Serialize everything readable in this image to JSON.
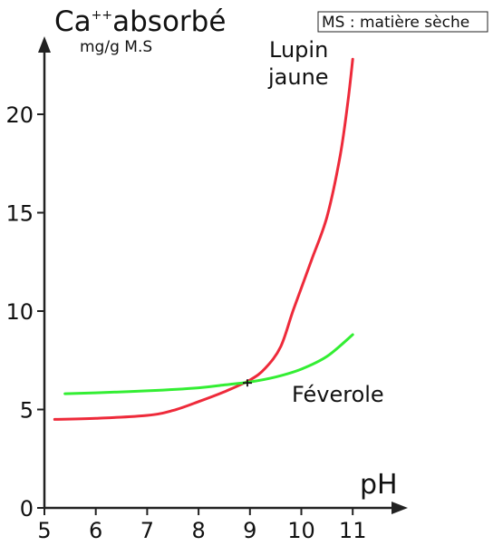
{
  "chart_data": {
    "type": "line",
    "ylabel": {
      "main": "Ca",
      "superscript": "++",
      "suffix": "absorbé",
      "unit": "mg/g M.S"
    },
    "xlabel": "pH",
    "note": "MS : matière sèche",
    "xlim": [
      5,
      11
    ],
    "ylim": [
      0,
      22
    ],
    "x_ticks": [
      5,
      6,
      7,
      8,
      9,
      10,
      11
    ],
    "y_ticks": [
      0,
      5,
      10,
      15,
      20
    ],
    "series": [
      {
        "name": "Lupin jaune",
        "label_lines": [
          "Lupin",
          "jaune"
        ],
        "color": "#ee2a3a",
        "points": [
          [
            5.2,
            4.5
          ],
          [
            6.0,
            4.55
          ],
          [
            7.0,
            4.7
          ],
          [
            7.5,
            4.95
          ],
          [
            8.0,
            5.4
          ],
          [
            8.5,
            5.9
          ],
          [
            9.0,
            6.5
          ],
          [
            9.3,
            7.1
          ],
          [
            9.6,
            8.2
          ],
          [
            9.85,
            10.1
          ],
          [
            10.2,
            12.6
          ],
          [
            10.5,
            14.8
          ],
          [
            10.75,
            17.8
          ],
          [
            10.9,
            20.5
          ],
          [
            11.0,
            22.8
          ]
        ]
      },
      {
        "name": "Féverole",
        "label_lines": [
          "Féverole"
        ],
        "color": "#33ee33",
        "points": [
          [
            5.4,
            5.8
          ],
          [
            6.0,
            5.85
          ],
          [
            7.0,
            5.95
          ],
          [
            8.0,
            6.1
          ],
          [
            8.5,
            6.25
          ],
          [
            9.0,
            6.4
          ],
          [
            9.5,
            6.65
          ],
          [
            10.0,
            7.05
          ],
          [
            10.5,
            7.7
          ],
          [
            11.0,
            8.8
          ]
        ]
      }
    ],
    "intersection": [
      8.95,
      6.35
    ]
  }
}
